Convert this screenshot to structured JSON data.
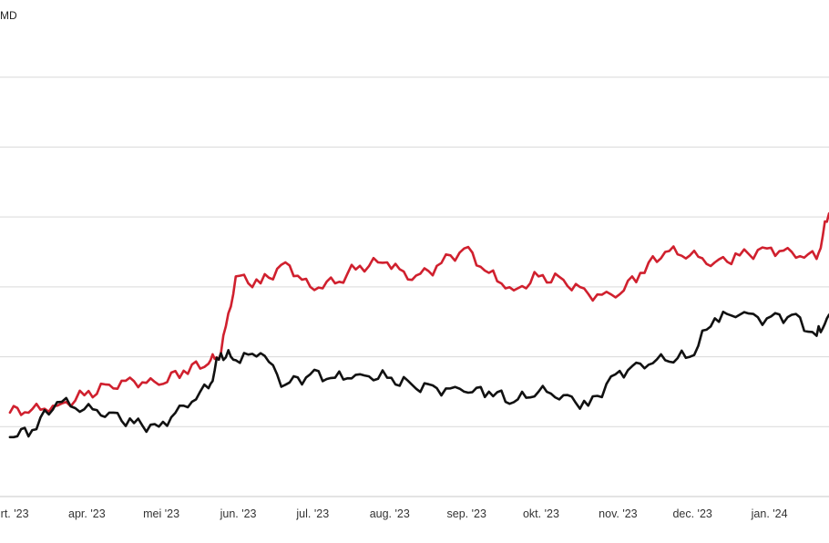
{
  "chart_data": {
    "type": "line",
    "unit_label": "MD",
    "x_ticks": [
      "mrt. '23",
      "apr. '23",
      "mei '23",
      "jun. '23",
      "jul. '23",
      "aug. '23",
      "sep. '23",
      "okt. '23",
      "nov. '23",
      "dec. '23",
      "jan. '24"
    ],
    "ylim": [
      0,
      7
    ],
    "grid": true,
    "series": [
      {
        "color": "#d0202e",
        "x": [
          "2023-03-01",
          "2023-03-10",
          "2023-03-20",
          "2023-03-31",
          "2023-04-10",
          "2023-04-20",
          "2023-04-30",
          "2023-05-10",
          "2023-05-20",
          "2023-05-25",
          "2023-05-31",
          "2023-06-10",
          "2023-06-20",
          "2023-06-30",
          "2023-07-10",
          "2023-07-20",
          "2023-07-31",
          "2023-08-10",
          "2023-08-20",
          "2023-08-31",
          "2023-09-10",
          "2023-09-20",
          "2023-09-30",
          "2023-10-10",
          "2023-10-20",
          "2023-10-31",
          "2023-11-10",
          "2023-11-20",
          "2023-11-30",
          "2023-12-10",
          "2023-12-20",
          "2023-12-31",
          "2024-01-10",
          "2024-01-20",
          "2024-01-25"
        ],
        "values": [
          1.2,
          1.25,
          1.3,
          1.45,
          1.6,
          1.65,
          1.6,
          1.8,
          1.9,
          2.05,
          3.15,
          3.05,
          3.35,
          3.0,
          3.05,
          3.3,
          3.35,
          3.1,
          3.3,
          3.55,
          3.2,
          2.95,
          3.15,
          3.1,
          2.9,
          2.85,
          3.2,
          3.5,
          3.45,
          3.35,
          3.45,
          3.55,
          3.5,
          3.4,
          4.05
        ]
      },
      {
        "color": "#111111",
        "x": [
          "2023-03-01",
          "2023-03-10",
          "2023-03-20",
          "2023-03-31",
          "2023-04-10",
          "2023-04-20",
          "2023-04-30",
          "2023-05-10",
          "2023-05-20",
          "2023-05-25",
          "2023-05-31",
          "2023-06-10",
          "2023-06-20",
          "2023-06-30",
          "2023-07-10",
          "2023-07-20",
          "2023-07-31",
          "2023-08-10",
          "2023-08-20",
          "2023-08-31",
          "2023-09-10",
          "2023-09-20",
          "2023-09-30",
          "2023-10-10",
          "2023-10-20",
          "2023-10-31",
          "2023-11-10",
          "2023-11-20",
          "2023-11-30",
          "2023-12-10",
          "2023-12-20",
          "2023-12-31",
          "2024-01-10",
          "2024-01-20",
          "2024-01-25"
        ],
        "values": [
          0.85,
          0.95,
          1.35,
          1.25,
          1.2,
          1.05,
          1.0,
          1.3,
          1.55,
          2.05,
          1.95,
          2.05,
          1.6,
          1.75,
          1.7,
          1.75,
          1.7,
          1.6,
          1.55,
          1.5,
          1.5,
          1.35,
          1.5,
          1.45,
          1.3,
          1.75,
          1.9,
          1.95,
          2.0,
          2.55,
          2.6,
          2.55,
          2.6,
          2.3,
          2.6
        ]
      }
    ]
  }
}
